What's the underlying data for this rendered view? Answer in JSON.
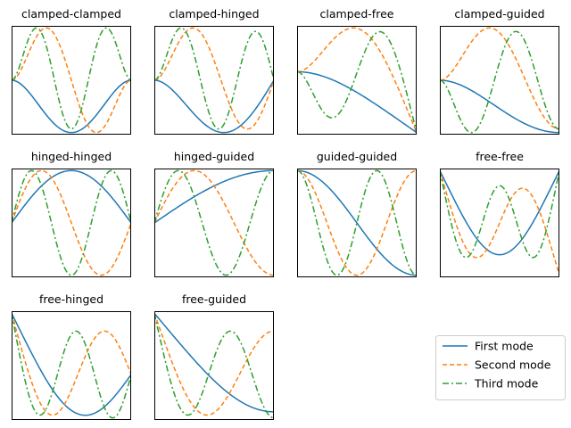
{
  "chart_data": {
    "type": "line",
    "colors": {
      "first": "#1f77b4",
      "second": "#ff7f0e",
      "third": "#2ca02c"
    },
    "series_styles": {
      "first": "solid",
      "second": "dashed",
      "third": "dashdot"
    },
    "legend": {
      "placement": "lower-right",
      "entries": [
        "First mode",
        "Second mode",
        "Third mode"
      ]
    },
    "panels": [
      {
        "title": "clamped-clamped",
        "left": "clamped",
        "right": "clamped"
      },
      {
        "title": "clamped-hinged",
        "left": "clamped",
        "right": "hinged"
      },
      {
        "title": "clamped-free",
        "left": "clamped",
        "right": "free"
      },
      {
        "title": "clamped-guided",
        "left": "clamped",
        "right": "guided"
      },
      {
        "title": "hinged-hinged",
        "left": "hinged",
        "right": "hinged"
      },
      {
        "title": "hinged-guided",
        "left": "hinged",
        "right": "guided"
      },
      {
        "title": "guided-guided",
        "left": "guided",
        "right": "guided"
      },
      {
        "title": "free-free",
        "left": "free",
        "right": "free"
      },
      {
        "title": "free-hinged",
        "left": "free",
        "right": "hinged"
      },
      {
        "title": "free-guided",
        "left": "free",
        "right": "guided"
      }
    ],
    "axis_ticks": "none",
    "grid": false
  }
}
